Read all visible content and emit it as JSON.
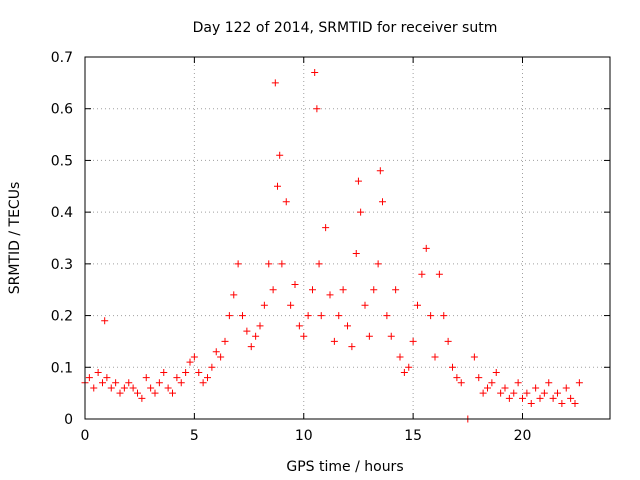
{
  "chart_data": {
    "type": "scatter",
    "title": "Day 122 of 2014, SRMTID for receiver sutm",
    "xlabel": "GPS time / hours",
    "ylabel": "SRMTID / TECUs",
    "xlim": [
      0,
      24
    ],
    "ylim": [
      0,
      0.7
    ],
    "xticks": [
      0,
      5,
      10,
      15,
      20
    ],
    "yticks": [
      0,
      0.1,
      0.2,
      0.3,
      0.4,
      0.5,
      0.6,
      0.7
    ],
    "xtick_labels": [
      "0",
      "5",
      "10",
      "15",
      "20"
    ],
    "ytick_labels": [
      "0",
      "0.1",
      "0.2",
      "0.3",
      "0.4",
      "0.5",
      "0.6",
      "0.7"
    ],
    "grid": true,
    "marker": "+",
    "color": "#ff0000",
    "series": [
      {
        "name": "SRMTID",
        "x": [
          0.0,
          0.2,
          0.4,
          0.6,
          0.8,
          0.9,
          1.0,
          1.2,
          1.4,
          1.6,
          1.8,
          2.0,
          2.2,
          2.4,
          2.6,
          2.8,
          3.0,
          3.2,
          3.4,
          3.6,
          3.8,
          4.0,
          4.2,
          4.4,
          4.6,
          4.8,
          5.0,
          5.2,
          5.4,
          5.6,
          5.8,
          6.0,
          6.2,
          6.4,
          6.6,
          6.8,
          7.0,
          7.2,
          7.4,
          7.6,
          7.8,
          8.0,
          8.2,
          8.4,
          8.6,
          8.7,
          8.8,
          8.9,
          9.0,
          9.2,
          9.4,
          9.6,
          9.8,
          10.0,
          10.2,
          10.4,
          10.5,
          10.6,
          10.7,
          10.8,
          11.0,
          11.2,
          11.4,
          11.6,
          11.8,
          12.0,
          12.2,
          12.4,
          12.5,
          12.6,
          12.8,
          13.0,
          13.2,
          13.4,
          13.5,
          13.6,
          13.8,
          14.0,
          14.2,
          14.4,
          14.6,
          14.8,
          15.0,
          15.2,
          15.4,
          15.6,
          15.8,
          16.0,
          16.2,
          16.4,
          16.6,
          16.8,
          17.0,
          17.2,
          17.5,
          17.8,
          18.0,
          18.2,
          18.4,
          18.6,
          18.8,
          19.0,
          19.2,
          19.4,
          19.6,
          19.8,
          20.0,
          20.2,
          20.4,
          20.6,
          20.8,
          21.0,
          21.2,
          21.4,
          21.6,
          21.8,
          22.0,
          22.2,
          22.4,
          22.6
        ],
        "y": [
          0.07,
          0.08,
          0.06,
          0.09,
          0.07,
          0.19,
          0.08,
          0.06,
          0.07,
          0.05,
          0.06,
          0.07,
          0.06,
          0.05,
          0.04,
          0.08,
          0.06,
          0.05,
          0.07,
          0.09,
          0.06,
          0.05,
          0.08,
          0.07,
          0.09,
          0.11,
          0.12,
          0.09,
          0.07,
          0.08,
          0.1,
          0.13,
          0.12,
          0.15,
          0.2,
          0.24,
          0.3,
          0.2,
          0.17,
          0.14,
          0.16,
          0.18,
          0.22,
          0.3,
          0.25,
          0.65,
          0.45,
          0.51,
          0.3,
          0.42,
          0.22,
          0.26,
          0.18,
          0.16,
          0.2,
          0.25,
          0.67,
          0.6,
          0.3,
          0.2,
          0.37,
          0.24,
          0.15,
          0.2,
          0.25,
          0.18,
          0.14,
          0.32,
          0.46,
          0.4,
          0.22,
          0.16,
          0.25,
          0.3,
          0.48,
          0.42,
          0.2,
          0.16,
          0.25,
          0.12,
          0.09,
          0.1,
          0.15,
          0.22,
          0.28,
          0.33,
          0.2,
          0.12,
          0.28,
          0.2,
          0.15,
          0.1,
          0.08,
          0.07,
          0.0,
          0.12,
          0.08,
          0.05,
          0.06,
          0.07,
          0.09,
          0.05,
          0.06,
          0.04,
          0.05,
          0.07,
          0.04,
          0.05,
          0.03,
          0.06,
          0.04,
          0.05,
          0.07,
          0.04,
          0.05,
          0.03,
          0.06,
          0.04,
          0.03,
          0.07
        ]
      }
    ]
  }
}
